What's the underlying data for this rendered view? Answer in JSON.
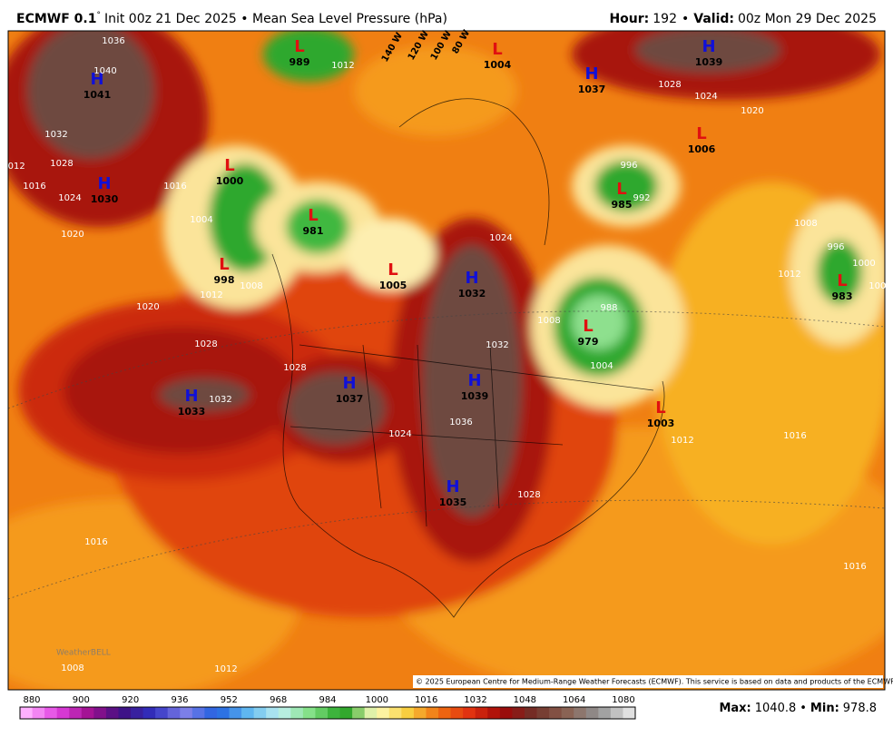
{
  "header": {
    "model": "ECMWF 0.1",
    "degree": "°",
    "description": "Init 00z 21 Dec 2025 • Mean Sea Level Pressure (hPa)",
    "hour_label": "Hour:",
    "hour": 192,
    "separator": "•",
    "valid_label": "Valid:",
    "valid": "00z Mon 29 Dec 2025"
  },
  "centers": [
    {
      "kind": "H",
      "value": 1041
    },
    {
      "kind": "H",
      "value": 1030
    },
    {
      "kind": "L",
      "value": 1000
    },
    {
      "kind": "L",
      "value": 981
    },
    {
      "kind": "L",
      "value": 998
    },
    {
      "kind": "L",
      "value": 1005
    },
    {
      "kind": "H",
      "value": 1032
    },
    {
      "kind": "H",
      "value": 1037
    },
    {
      "kind": "H",
      "value": 1033
    },
    {
      "kind": "H",
      "value": 1039
    },
    {
      "kind": "H",
      "value": 1035
    },
    {
      "kind": "L",
      "value": 1003
    },
    {
      "kind": "L",
      "value": 979
    },
    {
      "kind": "L",
      "value": 985
    },
    {
      "kind": "L",
      "value": 1006
    },
    {
      "kind": "L",
      "value": 983
    },
    {
      "kind": "H",
      "value": 1039
    },
    {
      "kind": "H",
      "value": 1037
    },
    {
      "kind": "L",
      "value": 989
    },
    {
      "kind": "L",
      "value": 1004
    }
  ],
  "contour_labels": [
    1036,
    1040,
    1032,
    1028,
    1024,
    1020,
    1016,
    1012,
    1016,
    1004,
    1008,
    1012,
    1020,
    1028,
    1032,
    1028,
    1024,
    1032,
    1036,
    1028,
    1024,
    1028,
    1024,
    1020,
    1016,
    1012,
    1016,
    1016,
    1012,
    1008,
    1008,
    1012,
    1000,
    1004,
    996,
    996,
    992,
    988,
    1008,
    1004,
    1012
  ],
  "longitude_labels": [
    "140 W",
    "120 W",
    "100 W",
    "80 W"
  ],
  "credit": "© 2025 European Centre for Medium-Range Weather Forecasts (ECMWF). This service is based on data and products of the ECMWF.",
  "watermark": "WeatherBELL",
  "legend": {
    "ticks": [
      880,
      900,
      920,
      936,
      952,
      968,
      984,
      1000,
      1016,
      1032,
      1048,
      1064,
      1080
    ]
  },
  "stats": {
    "max_label": "Max:",
    "max": 1040.8,
    "separator": "•",
    "min_label": "Min:",
    "min": 978.8
  }
}
